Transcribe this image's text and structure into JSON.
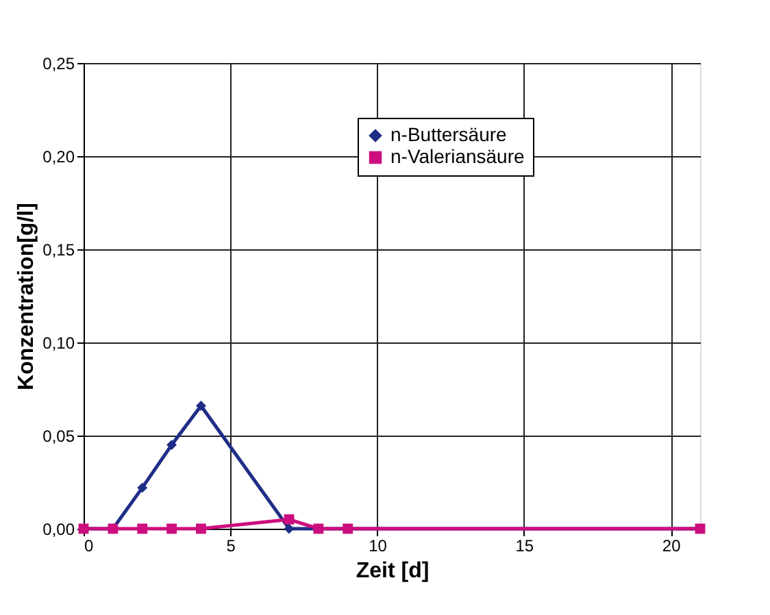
{
  "chart_data": {
    "type": "line",
    "xlabel": "Zeit [d]",
    "ylabel": "Konzentration[g/l]",
    "x": [
      0,
      1,
      2,
      3,
      4,
      7,
      8,
      9,
      21
    ],
    "series": [
      {
        "name": "n-Buttersäure",
        "color": "#1f2d86",
        "marker": "diamond",
        "values": [
          0,
          0,
          0.022,
          0.045,
          0.066,
          0,
          0,
          0,
          0
        ]
      },
      {
        "name": "n-Valeriansäure",
        "color": "#cc0e7e",
        "marker": "square",
        "values": [
          0,
          0,
          0,
          0,
          0,
          0.005,
          0,
          0,
          0
        ]
      }
    ],
    "xlim": [
      0,
      21
    ],
    "xticks": [
      0,
      5,
      10,
      15,
      20
    ],
    "ylim": [
      0,
      0.25
    ],
    "yticks": [
      {
        "value": 0,
        "label": "0,00"
      },
      {
        "value": 0.05,
        "label": "0,05"
      },
      {
        "value": 0.1,
        "label": "0,10"
      },
      {
        "value": 0.15,
        "label": "0,15"
      },
      {
        "value": 0.2,
        "label": "0,20"
      },
      {
        "value": 0.25,
        "label": "0,25"
      }
    ],
    "grid": true,
    "legend": "top right",
    "line_style": "solid"
  }
}
